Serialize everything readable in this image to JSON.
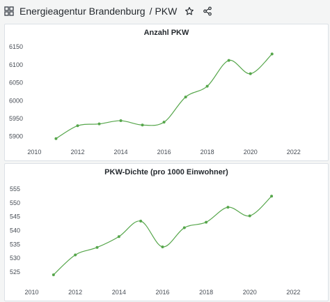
{
  "header": {
    "folder": "Energieagentur Brandenburg",
    "separator": "/",
    "page": "PKW",
    "icons": [
      "dashboards-grid-icon",
      "star-icon",
      "share-icon"
    ]
  },
  "colors": {
    "line": "#56a64b",
    "grid": "#e6e8ea",
    "panel_bg": "#ffffff"
  },
  "chart_data": [
    {
      "type": "line",
      "title": "Anzahl PKW",
      "x": [
        2011,
        2012,
        2013,
        2014,
        2015,
        2016,
        2017,
        2018,
        2019,
        2020,
        2021
      ],
      "series": [
        {
          "values": [
            5894,
            5930,
            5935,
            5944,
            5932,
            5940,
            6010,
            6040,
            6112,
            6075,
            6130
          ]
        }
      ],
      "xlim": [
        2009.6,
        2023.2
      ],
      "ylim": [
        5878,
        6158
      ],
      "xticks": [
        "2010",
        "2012",
        "2014",
        "2016",
        "2018",
        "2020",
        "2022"
      ],
      "yticks": [
        "5900",
        "5950",
        "6000",
        "6050",
        "6100",
        "6150"
      ],
      "xlabel": "",
      "ylabel": "",
      "grid": false,
      "legend": "none"
    },
    {
      "type": "line",
      "title": "PKW-Dichte (pro 1000 Einwohner)",
      "x": [
        2011,
        2012,
        2013,
        2014,
        2015,
        2016,
        2017,
        2018,
        2019,
        2020,
        2021
      ],
      "series": [
        {
          "values": [
            524,
            531.2,
            533.9,
            537.8,
            543.4,
            534.1,
            541,
            543,
            548.4,
            545.3,
            552.4
          ]
        }
      ],
      "xlim": [
        2009.6,
        2023.2
      ],
      "ylim": [
        522,
        557
      ],
      "xticks": [
        "2010",
        "2012",
        "2014",
        "2016",
        "2018",
        "2020",
        "2022"
      ],
      "yticks": [
        "525",
        "530",
        "535",
        "540",
        "545",
        "550",
        "555"
      ],
      "xlabel": "",
      "ylabel": "",
      "grid": false,
      "legend": "none"
    }
  ]
}
